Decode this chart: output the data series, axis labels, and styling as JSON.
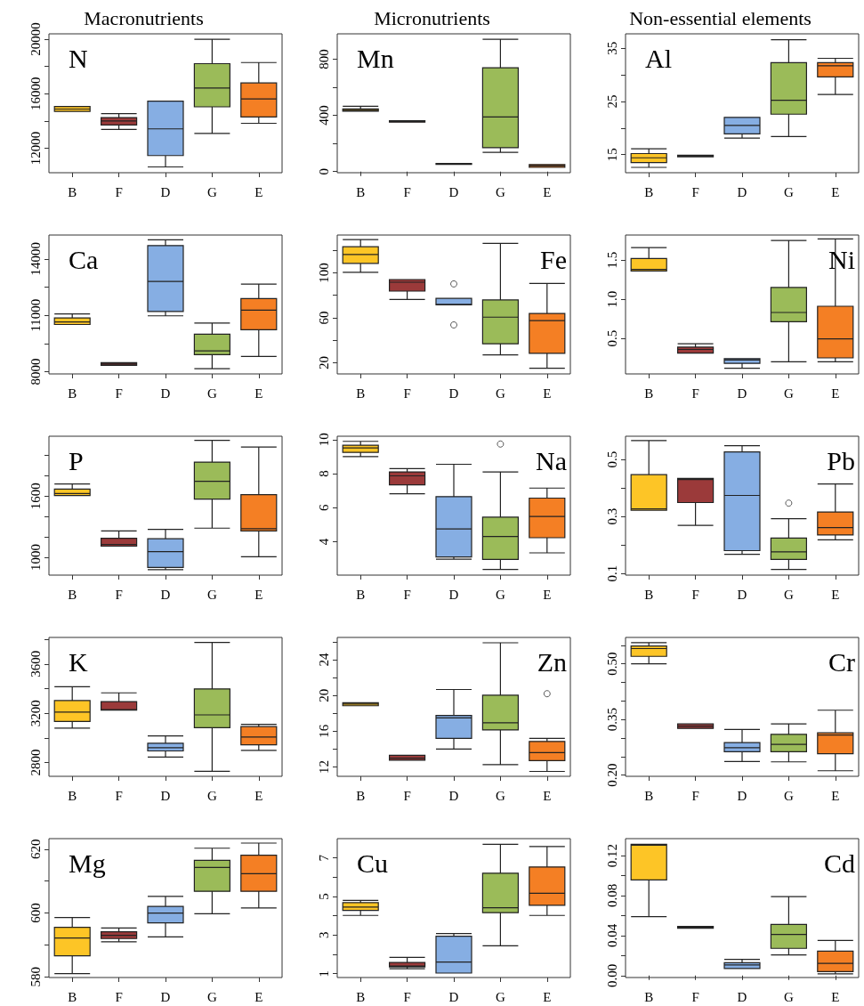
{
  "chart_data": [
    {
      "type": "box",
      "title": "Macronutrients",
      "annotations": [
        "N"
      ],
      "categories": [
        "B",
        "F",
        "D",
        "G",
        "E"
      ],
      "colors": [
        "#fdc526",
        "#9b3a3a",
        "#86aee3",
        "#9bbb59",
        "#f47f24"
      ],
      "ylim": [
        10200,
        20400
      ],
      "yticks": [
        12000,
        {
          "value": 14000,
          "label": null
        },
        16000,
        {
          "value": 18000,
          "label": null
        },
        20000
      ],
      "boxes": [
        {
          "low": 14700,
          "q1": 14700,
          "median": 14875,
          "q3": 15060,
          "high": 15060
        },
        {
          "low": 13375,
          "q1": 13710,
          "median": 14000,
          "q3": 14250,
          "high": 14540
        },
        {
          "low": 10625,
          "q1": 11460,
          "median": 13420,
          "q3": 15460,
          "high": 15460
        },
        {
          "low": 13080,
          "q1": 15040,
          "median": 16420,
          "q3": 18210,
          "high": 20000
        },
        {
          "low": 13830,
          "q1": 14290,
          "median": 15625,
          "q3": 16790,
          "high": 18290
        }
      ]
    },
    {
      "type": "box",
      "title": "Micronutrients",
      "annotations": [
        "Mn"
      ],
      "categories": [
        "B",
        "F",
        "D",
        "G",
        "E"
      ],
      "colors": [
        "#fdc526",
        "#9b3a3a",
        "#86aee3",
        "#9bbb59",
        "#f47f24"
      ],
      "ylim": [
        -8,
        980
      ],
      "yticks": [
        0,
        {
          "value": 200,
          "label": null
        },
        400,
        {
          "value": 600,
          "label": null
        },
        800
      ],
      "boxes": [
        {
          "low": 430,
          "q1": 430,
          "median": 436,
          "q3": 446,
          "high": 465
        },
        {
          "low": 352,
          "q1": 352,
          "median": 357,
          "q3": 362,
          "high": 362
        },
        {
          "low": 52,
          "q1": 52,
          "median": 55,
          "q3": 58,
          "high": 58
        },
        {
          "low": 137,
          "q1": 170,
          "median": 388,
          "q3": 739,
          "high": 941
        },
        {
          "low": 30,
          "q1": 30,
          "median": 40,
          "q3": 50,
          "high": 50
        }
      ]
    },
    {
      "type": "box",
      "title": "Non-essential elements",
      "annotations": [
        "Al"
      ],
      "categories": [
        "B",
        "F",
        "D",
        "G",
        "E"
      ],
      "colors": [
        "#fdc526",
        "#9b3a3a",
        "#86aee3",
        "#9bbb59",
        "#f47f24"
      ],
      "ylim": [
        11.6,
        37.7
      ],
      "yticks": [
        15,
        {
          "value": 20,
          "label": null
        },
        25,
        {
          "value": 30,
          "label": null
        },
        35
      ],
      "boxes": [
        {
          "low": 12.6,
          "q1": 13.5,
          "median": 14.4,
          "q3": 15.2,
          "high": 16.1
        },
        {
          "low": 14.6,
          "q1": 14.6,
          "median": 14.75,
          "q3": 14.9,
          "high": 14.9
        },
        {
          "low": 18.1,
          "q1": 18.9,
          "median": 20.5,
          "q3": 22.0,
          "high": 22.0
        },
        {
          "low": 18.4,
          "q1": 22.6,
          "median": 25.2,
          "q3": 32.3,
          "high": 36.6
        },
        {
          "low": 26.3,
          "q1": 29.6,
          "median": 31.7,
          "q3": 32.3,
          "high": 33.1
        }
      ]
    },
    {
      "type": "box",
      "annotations": [
        "Ca"
      ],
      "categories": [
        "B",
        "F",
        "D",
        "G",
        "E"
      ],
      "colors": [
        "#fdc526",
        "#9b3a3a",
        "#86aee3",
        "#9bbb59",
        "#f47f24"
      ],
      "ylim": [
        7880,
        15270
      ],
      "yticks": [
        8000,
        {
          "value": 9500,
          "label": null
        },
        11000,
        {
          "value": 12500,
          "label": null
        },
        14000
      ],
      "boxes": [
        {
          "low": 10510,
          "q1": 10510,
          "median": 10650,
          "q3": 10860,
          "high": 11070
        },
        {
          "low": 8340,
          "q1": 8340,
          "median": 8410,
          "q3": 8480,
          "high": 8480
        },
        {
          "low": 10970,
          "q1": 11200,
          "median": 12800,
          "q3": 14710,
          "high": 15020
        },
        {
          "low": 8160,
          "q1": 8900,
          "median": 9110,
          "q3": 9990,
          "high": 10590
        },
        {
          "low": 8810,
          "q1": 10230,
          "median": 11270,
          "q3": 11890,
          "high": 12660
        }
      ]
    },
    {
      "type": "box",
      "annotations": [
        "Fe"
      ],
      "categories": [
        "B",
        "F",
        "D",
        "G",
        "E"
      ],
      "colors": [
        "#fdc526",
        "#9b3a3a",
        "#86aee3",
        "#9bbb59",
        "#f47f24"
      ],
      "ylim": [
        10,
        133.6
      ],
      "yticks": [
        20,
        {
          "value": 40,
          "label": null
        },
        60,
        {
          "value": 80,
          "label": null
        },
        100,
        {
          "value": 120,
          "label": null
        }
      ],
      "boxes": [
        {
          "low": 100.5,
          "q1": 108.4,
          "median": 116.3,
          "q3": 123.2,
          "high": 129.6
        },
        {
          "low": 76.3,
          "q1": 83.7,
          "median": 91.6,
          "q3": 94,
          "high": 94
        },
        {
          "low": 71.5,
          "q1": 71.5,
          "median": 72,
          "q3": 77.2,
          "high": 77.2,
          "outliers": [
            90.1,
            53.6
          ]
        },
        {
          "low": 26.9,
          "q1": 36.8,
          "median": 60.5,
          "q3": 75.8,
          "high": 126.2
        },
        {
          "low": 15.1,
          "q1": 28.3,
          "median": 57.4,
          "q3": 63.8,
          "high": 90.5
        }
      ]
    },
    {
      "type": "box",
      "annotations": [
        "Ni"
      ],
      "categories": [
        "B",
        "F",
        "D",
        "G",
        "E"
      ],
      "colors": [
        "#fdc526",
        "#9b3a3a",
        "#86aee3",
        "#9bbb59",
        "#f47f24"
      ],
      "ylim": [
        0.045,
        1.82
      ],
      "yticks": [
        {
          "value": 0.5,
          "label": "0.5"
        },
        {
          "value": 1,
          "label": "1.0"
        },
        {
          "value": 1.5,
          "label": "1.5"
        }
      ],
      "boxes": [
        {
          "low": 1.36,
          "q1": 1.36,
          "median": 1.38,
          "q3": 1.52,
          "high": 1.66
        },
        {
          "low": 0.31,
          "q1": 0.31,
          "median": 0.358,
          "q3": 0.387,
          "high": 0.43
        },
        {
          "low": 0.117,
          "q1": 0.18,
          "median": 0.223,
          "q3": 0.24,
          "high": 0.24
        },
        {
          "low": 0.2,
          "q1": 0.713,
          "median": 0.83,
          "q3": 1.149,
          "high": 1.75
        },
        {
          "low": 0.2,
          "q1": 0.25,
          "median": 0.493,
          "q3": 0.91,
          "high": 1.77
        }
      ]
    },
    {
      "type": "box",
      "annotations": [
        "P"
      ],
      "categories": [
        "B",
        "F",
        "D",
        "G",
        "E"
      ],
      "colors": [
        "#fdc526",
        "#9b3a3a",
        "#86aee3",
        "#9bbb59",
        "#f47f24"
      ],
      "ylim": [
        825,
        2186
      ],
      "yticks": [
        1000,
        {
          "value": 1200,
          "label": null
        },
        {
          "value": 1400,
          "label": null
        },
        1600,
        {
          "value": 1800,
          "label": null
        },
        {
          "value": 2000,
          "label": null
        }
      ],
      "boxes": [
        {
          "low": 1604,
          "q1": 1604,
          "median": 1625,
          "q3": 1668,
          "high": 1718
        },
        {
          "low": 1110,
          "q1": 1110,
          "median": 1126,
          "q3": 1186,
          "high": 1258
        },
        {
          "low": 879,
          "q1": 901,
          "median": 1055,
          "q3": 1181,
          "high": 1274
        },
        {
          "low": 1285,
          "q1": 1570,
          "median": 1745,
          "q3": 1932,
          "high": 2145
        },
        {
          "low": 1005,
          "q1": 1258,
          "median": 1279,
          "q3": 1614,
          "high": 2080
        }
      ]
    },
    {
      "type": "box",
      "annotations": [
        "Na"
      ],
      "categories": [
        "B",
        "F",
        "D",
        "G",
        "E"
      ],
      "colors": [
        "#fdc526",
        "#9b3a3a",
        "#86aee3",
        "#9bbb59",
        "#f47f24"
      ],
      "ylim": [
        2.03,
        10.2
      ],
      "yticks": [
        4,
        6,
        8,
        10
      ],
      "boxes": [
        {
          "low": 9.0,
          "q1": 9.25,
          "median": 9.51,
          "q3": 9.67,
          "high": 9.9
        },
        {
          "low": 6.82,
          "q1": 7.34,
          "median": 7.87,
          "q3": 8.1,
          "high": 8.3
        },
        {
          "low": 2.97,
          "q1": 3.1,
          "median": 4.75,
          "q3": 6.65,
          "high": 8.55
        },
        {
          "low": 2.36,
          "q1": 2.95,
          "median": 4.3,
          "q3": 5.44,
          "high": 8.1,
          "outliers": [
            9.74
          ]
        },
        {
          "low": 3.34,
          "q1": 4.23,
          "median": 5.48,
          "q3": 6.56,
          "high": 7.15
        }
      ]
    },
    {
      "type": "box",
      "annotations": [
        "Pb"
      ],
      "categories": [
        "B",
        "F",
        "D",
        "G",
        "E"
      ],
      "colors": [
        "#fdc526",
        "#9b3a3a",
        "#86aee3",
        "#9bbb59",
        "#f47f24"
      ],
      "ylim": [
        0.094,
        0.582
      ],
      "yticks": [
        {
          "value": 0.1,
          "label": "0.1"
        },
        {
          "value": 0.2,
          "label": null
        },
        {
          "value": 0.3,
          "label": "0.3"
        },
        {
          "value": 0.4,
          "label": null
        },
        {
          "value": 0.5,
          "label": "0.5"
        }
      ],
      "boxes": [
        {
          "low": 0.322,
          "q1": 0.322,
          "median": 0.327,
          "q3": 0.447,
          "high": 0.567
        },
        {
          "low": 0.269,
          "q1": 0.349,
          "median": 0.43,
          "q3": 0.434,
          "high": 0.434
        },
        {
          "low": 0.167,
          "q1": 0.18,
          "median": 0.374,
          "q3": 0.527,
          "high": 0.549
        },
        {
          "low": 0.114,
          "q1": 0.149,
          "median": 0.176,
          "q3": 0.224,
          "high": 0.292,
          "outliers": [
            0.347
          ]
        },
        {
          "low": 0.218,
          "q1": 0.235,
          "median": 0.261,
          "q3": 0.316,
          "high": 0.414
        }
      ]
    },
    {
      "type": "box",
      "annotations": [
        "K"
      ],
      "categories": [
        "B",
        "F",
        "D",
        "G",
        "E"
      ],
      "colors": [
        "#fdc526",
        "#9b3a3a",
        "#86aee3",
        "#9bbb59",
        "#f47f24"
      ],
      "ylim": [
        2688,
        3816
      ],
      "yticks": [
        2800,
        {
          "value": 3000,
          "label": null
        },
        3200,
        {
          "value": 3400,
          "label": null
        },
        3600,
        {
          "value": 3800,
          "label": null
        }
      ],
      "boxes": [
        {
          "low": 3079,
          "q1": 3133,
          "median": 3210,
          "q3": 3303,
          "high": 3416
        },
        {
          "low": 3226,
          "q1": 3226,
          "median": 3230,
          "q3": 3295,
          "high": 3366
        },
        {
          "low": 2845,
          "q1": 2894,
          "median": 2921,
          "q3": 2957,
          "high": 3016
        },
        {
          "low": 2728,
          "q1": 3083,
          "median": 3187,
          "q3": 3398,
          "high": 3775
        },
        {
          "low": 2899,
          "q1": 2944,
          "median": 3007,
          "q3": 3092,
          "high": 3110
        }
      ]
    },
    {
      "type": "box",
      "annotations": [
        "Zn"
      ],
      "categories": [
        "B",
        "F",
        "D",
        "G",
        "E"
      ],
      "colors": [
        "#fdc526",
        "#9b3a3a",
        "#86aee3",
        "#9bbb59",
        "#f47f24"
      ],
      "ylim": [
        10.95,
        26.5
      ],
      "yticks": [
        12,
        {
          "value": 14,
          "label": null
        },
        16,
        {
          "value": 18,
          "label": null
        },
        20,
        {
          "value": 22,
          "label": null
        },
        24,
        {
          "value": 26,
          "label": null
        }
      ],
      "boxes": [
        {
          "low": 18.85,
          "q1": 18.85,
          "median": 19.04,
          "q3": 19.18,
          "high": 19.18
        },
        {
          "low": 12.75,
          "q1": 12.75,
          "median": 12.99,
          "q3": 13.3,
          "high": 13.3
        },
        {
          "low": 14.0,
          "q1": 15.2,
          "median": 17.5,
          "q3": 17.76,
          "high": 20.67
        },
        {
          "low": 12.25,
          "q1": 16.14,
          "median": 16.94,
          "q3": 20.03,
          "high": 25.9
        },
        {
          "low": 11.5,
          "q1": 12.7,
          "median": 13.6,
          "q3": 14.85,
          "high": 15.2,
          "outliers": [
            20.2
          ]
        }
      ]
    },
    {
      "type": "box",
      "annotations": [
        "Cr"
      ],
      "categories": [
        "B",
        "F",
        "D",
        "G",
        "E"
      ],
      "colors": [
        "#fdc526",
        "#9b3a3a",
        "#86aee3",
        "#9bbb59",
        "#f47f24"
      ],
      "ylim": [
        0.197,
        0.571
      ],
      "yticks": [
        {
          "value": 0.2,
          "label": "0.20"
        },
        {
          "value": 0.25,
          "label": null
        },
        {
          "value": 0.3,
          "label": null
        },
        {
          "value": 0.35,
          "label": "0.35"
        },
        {
          "value": 0.4,
          "label": null
        },
        {
          "value": 0.45,
          "label": null
        },
        {
          "value": 0.5,
          "label": "0.50"
        },
        {
          "value": 0.55,
          "label": null
        }
      ],
      "boxes": [
        {
          "low": 0.5,
          "q1": 0.52,
          "median": 0.541,
          "q3": 0.548,
          "high": 0.557
        },
        {
          "low": 0.326,
          "q1": 0.326,
          "median": 0.332,
          "q3": 0.338,
          "high": 0.338
        },
        {
          "low": 0.237,
          "q1": 0.263,
          "median": 0.274,
          "q3": 0.288,
          "high": 0.323
        },
        {
          "low": 0.236,
          "q1": 0.263,
          "median": 0.283,
          "q3": 0.31,
          "high": 0.338
        },
        {
          "low": 0.212,
          "q1": 0.258,
          "median": 0.308,
          "q3": 0.314,
          "high": 0.375
        }
      ]
    },
    {
      "type": "box",
      "annotations": [
        "Mg"
      ],
      "categories": [
        "B",
        "F",
        "D",
        "G",
        "E"
      ],
      "colors": [
        "#fdc526",
        "#9b3a3a",
        "#86aee3",
        "#9bbb59",
        "#f47f24"
      ],
      "ylim": [
        579.8,
        623.3
      ],
      "yticks": [
        580,
        {
          "value": 590,
          "label": null
        },
        600,
        {
          "value": 610,
          "label": null
        },
        620
      ],
      "boxes": [
        {
          "low": 581,
          "q1": 586.6,
          "median": 592.2,
          "q3": 595.5,
          "high": 598.6
        },
        {
          "low": 591,
          "q1": 592,
          "median": 593,
          "q3": 594.1,
          "high": 595.3
        },
        {
          "low": 592.5,
          "q1": 596.9,
          "median": 600,
          "q3": 602.1,
          "high": 605.2
        },
        {
          "low": 599.8,
          "q1": 606.8,
          "median": 614.3,
          "q3": 616.5,
          "high": 620.3
        },
        {
          "low": 601.6,
          "q1": 606.8,
          "median": 612.3,
          "q3": 618.1,
          "high": 621.9
        }
      ]
    },
    {
      "type": "box",
      "annotations": [
        "Cu"
      ],
      "categories": [
        "B",
        "F",
        "D",
        "G",
        "E"
      ],
      "colors": [
        "#fdc526",
        "#9b3a3a",
        "#86aee3",
        "#9bbb59",
        "#f47f24"
      ],
      "ylim": [
        0.8,
        8.0
      ],
      "yticks": [
        1,
        {
          "value": 2,
          "label": null
        },
        3,
        {
          "value": 4,
          "label": null
        },
        5,
        {
          "value": 6,
          "label": null
        },
        7
      ],
      "boxes": [
        {
          "low": 4.02,
          "q1": 4.28,
          "median": 4.45,
          "q3": 4.68,
          "high": 4.8
        },
        {
          "low": 1.26,
          "q1": 1.35,
          "median": 1.4,
          "q3": 1.58,
          "high": 1.84
        },
        {
          "low": 1.03,
          "q1": 1.03,
          "median": 1.6,
          "q3": 2.94,
          "high": 3.08
        },
        {
          "low": 2.44,
          "q1": 4.16,
          "median": 4.42,
          "q3": 6.21,
          "high": 7.71
        },
        {
          "low": 4.02,
          "q1": 4.54,
          "median": 5.17,
          "q3": 6.53,
          "high": 7.59
        }
      ]
    },
    {
      "type": "box",
      "annotations": [
        "Cd"
      ],
      "categories": [
        "B",
        "F",
        "D",
        "G",
        "E"
      ],
      "colors": [
        "#fdc526",
        "#9b3a3a",
        "#86aee3",
        "#9bbb59",
        "#f47f24"
      ],
      "ylim": [
        -0.002,
        0.137
      ],
      "yticks": [
        {
          "value": 0,
          "label": "0.00"
        },
        {
          "value": 0.02,
          "label": null
        },
        {
          "value": 0.04,
          "label": "0.04"
        },
        {
          "value": 0.06,
          "label": null
        },
        {
          "value": 0.08,
          "label": "0.08"
        },
        {
          "value": 0.1,
          "label": null
        },
        {
          "value": 0.12,
          "label": "0.12"
        }
      ],
      "boxes": [
        {
          "low": 0.0589,
          "q1": 0.0956,
          "median": 0.1305,
          "q3": 0.1313,
          "high": 0.1313
        },
        {
          "low": 0.0473,
          "q1": 0.0473,
          "median": 0.0483,
          "q3": 0.0492,
          "high": 0.0492
        },
        {
          "low": 0.007,
          "q1": 0.007,
          "median": 0.0106,
          "q3": 0.0128,
          "high": 0.0161
        },
        {
          "low": 0.0206,
          "q1": 0.0272,
          "median": 0.0411,
          "q3": 0.0511,
          "high": 0.0789
        },
        {
          "low": 0.0017,
          "q1": 0.0039,
          "median": 0.0122,
          "q3": 0.0244,
          "high": 0.035
        }
      ]
    }
  ]
}
